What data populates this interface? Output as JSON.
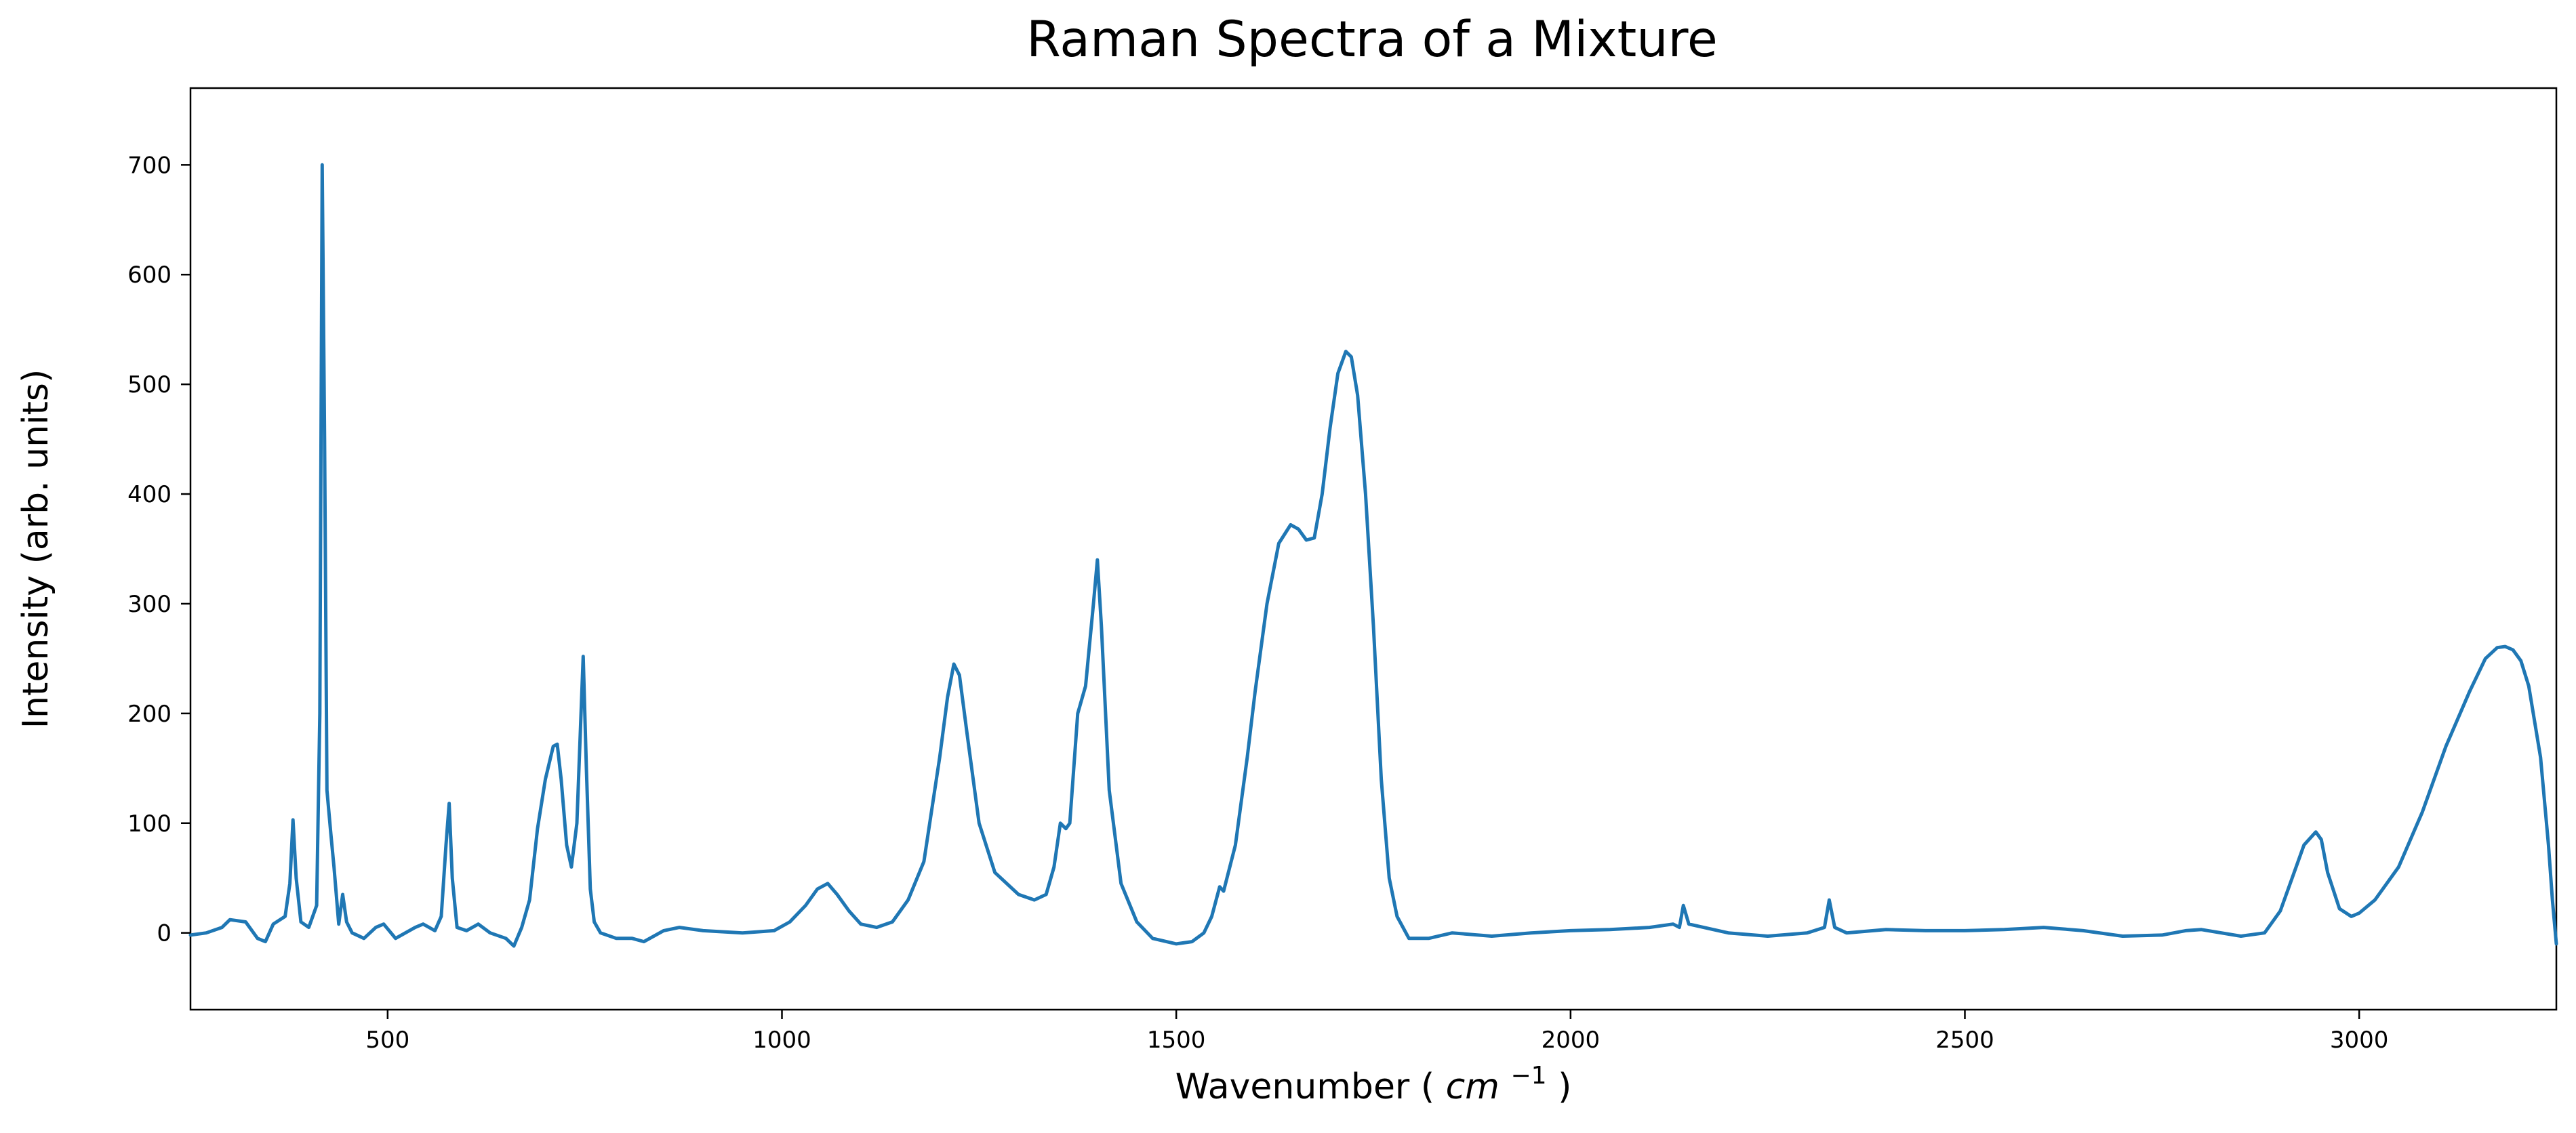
{
  "chart_data": {
    "type": "line",
    "title": "Raman Spectra of a Mixture",
    "xlabel": "Wavenumber",
    "xlabel_unit_base": "cm",
    "xlabel_unit_exponent": "−1",
    "ylabel": "Intensity (arb. units)",
    "xlim": [
      250,
      3250
    ],
    "ylim": [
      -70,
      770
    ],
    "xticks": [
      500,
      1000,
      1500,
      2000,
      2500,
      3000
    ],
    "xtick_labels": [
      "500",
      "1000",
      "1500",
      "2000",
      "2500",
      "3000"
    ],
    "yticks": [
      0,
      100,
      200,
      300,
      400,
      500,
      600,
      700
    ],
    "ytick_labels": [
      "0",
      "100",
      "200",
      "300",
      "400",
      "500",
      "600",
      "700"
    ],
    "grid": false,
    "legend": "none",
    "series": [
      {
        "color": "#1f77b4",
        "x": [
          250,
          270,
          290,
          300,
          320,
          335,
          345,
          355,
          370,
          376,
          380,
          384,
          390,
          400,
          410,
          414,
          417,
          420,
          423,
          428,
          432,
          438,
          443,
          448,
          455,
          470,
          485,
          495,
          510,
          535,
          545,
          560,
          568,
          574,
          578,
          582,
          588,
          600,
          615,
          630,
          650,
          660,
          670,
          680,
          690,
          700,
          710,
          715,
          720,
          727,
          733,
          740,
          748,
          752,
          757,
          762,
          770,
          790,
          800,
          810,
          825,
          850,
          870,
          900,
          950,
          990,
          1010,
          1030,
          1045,
          1058,
          1070,
          1085,
          1100,
          1120,
          1140,
          1160,
          1180,
          1200,
          1210,
          1218,
          1225,
          1235,
          1250,
          1270,
          1300,
          1320,
          1335,
          1345,
          1353,
          1360,
          1365,
          1375,
          1385,
          1395,
          1400,
          1405,
          1415,
          1430,
          1450,
          1470,
          1500,
          1520,
          1535,
          1545,
          1555,
          1560,
          1575,
          1590,
          1600,
          1615,
          1630,
          1645,
          1655,
          1665,
          1675,
          1685,
          1695,
          1705,
          1715,
          1722,
          1730,
          1740,
          1750,
          1760,
          1770,
          1780,
          1795,
          1820,
          1850,
          1900,
          1950,
          2000,
          2050,
          2100,
          2130,
          2138,
          2143,
          2150,
          2200,
          2250,
          2300,
          2322,
          2328,
          2335,
          2350,
          2400,
          2450,
          2500,
          2550,
          2600,
          2650,
          2700,
          2750,
          2780,
          2800,
          2850,
          2880,
          2900,
          2915,
          2930,
          2945,
          2952,
          2960,
          2975,
          2990,
          3000,
          3020,
          3050,
          3080,
          3110,
          3140,
          3160,
          3175,
          3185,
          3195,
          3205,
          3215,
          3230,
          3240,
          3245,
          3250
        ],
        "y": [
          -2,
          0,
          5,
          12,
          10,
          -5,
          -8,
          8,
          15,
          45,
          103,
          50,
          10,
          5,
          25,
          200,
          700,
          450,
          130,
          90,
          60,
          8,
          35,
          10,
          0,
          -5,
          5,
          8,
          -5,
          5,
          8,
          2,
          15,
          80,
          118,
          50,
          5,
          2,
          8,
          0,
          -5,
          -12,
          5,
          30,
          95,
          140,
          170,
          172,
          140,
          80,
          60,
          100,
          252,
          150,
          40,
          10,
          0,
          -5,
          -5,
          -5,
          -8,
          2,
          5,
          2,
          0,
          2,
          10,
          25,
          40,
          45,
          35,
          20,
          8,
          5,
          10,
          30,
          65,
          160,
          215,
          245,
          235,
          180,
          100,
          55,
          35,
          30,
          35,
          60,
          100,
          95,
          100,
          200,
          225,
          300,
          340,
          280,
          130,
          45,
          10,
          -5,
          -10,
          -8,
          0,
          15,
          42,
          38,
          80,
          160,
          220,
          300,
          355,
          372,
          368,
          358,
          360,
          400,
          460,
          510,
          530,
          525,
          490,
          400,
          280,
          140,
          50,
          15,
          -5,
          -5,
          0,
          -3,
          0,
          2,
          3,
          5,
          8,
          5,
          25,
          8,
          0,
          -3,
          0,
          5,
          30,
          5,
          0,
          3,
          2,
          2,
          3,
          5,
          2,
          -3,
          -2,
          2,
          3,
          -3,
          0,
          20,
          50,
          80,
          92,
          85,
          55,
          22,
          15,
          18,
          30,
          60,
          110,
          170,
          220,
          250,
          260,
          261,
          258,
          248,
          225,
          160,
          80,
          30,
          -10
        ]
      }
    ]
  }
}
